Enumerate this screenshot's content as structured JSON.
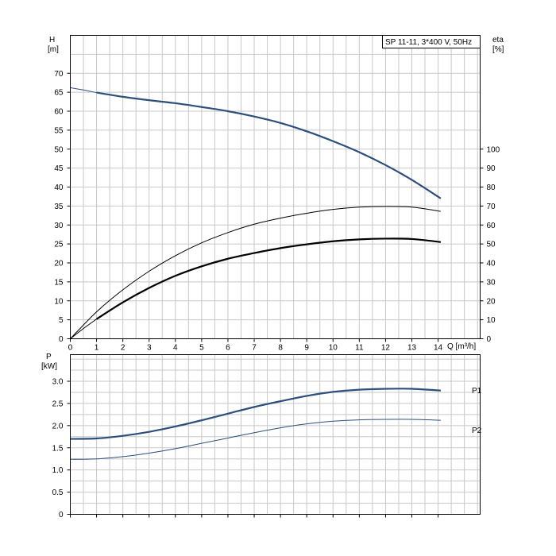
{
  "title": "SP 11-11, 3*400 V, 50Hz",
  "chart_data": [
    {
      "type": "line",
      "name": "H-Q and efficiency curves",
      "xlabel": "Q [m³/h]",
      "ylabel_left": "H\n[m]",
      "ylabel_right": "eta\n[%]",
      "xlim": [
        0,
        15.6
      ],
      "ylim_left": [
        0,
        80
      ],
      "ylim_right": [
        0,
        160
      ],
      "x_ticks": [
        "0",
        "1",
        "2",
        "3",
        "4",
        "5",
        "6",
        "7",
        "8",
        "9",
        "10",
        "11",
        "12",
        "13",
        "14"
      ],
      "y_ticks_left": [
        "0",
        "5",
        "10",
        "15",
        "20",
        "25",
        "30",
        "35",
        "40",
        "45",
        "50",
        "55",
        "60",
        "65",
        "70"
      ],
      "y_ticks_right": [
        "0",
        "10",
        "20",
        "30",
        "40",
        "50",
        "60",
        "70",
        "80",
        "90",
        "100"
      ],
      "grid": true,
      "series": [
        {
          "id": "H-ext",
          "axis": "left",
          "color": "#2c4f7c",
          "weight": "thin",
          "x": [
            0,
            0.5,
            1
          ],
          "y": [
            66.2,
            65.6,
            64.9
          ]
        },
        {
          "id": "H",
          "axis": "left",
          "color": "#2c4f7c",
          "weight": "thick",
          "x": [
            1,
            2,
            3,
            4,
            5,
            6,
            7,
            8,
            9,
            10,
            11,
            12,
            13,
            14.1
          ],
          "y": [
            64.9,
            63.8,
            62.9,
            62.1,
            61.1,
            60.0,
            58.6,
            56.9,
            54.7,
            52.1,
            49.2,
            45.8,
            41.9,
            37.0
          ]
        },
        {
          "id": "eta-ext",
          "axis": "right",
          "color": "#000000",
          "weight": "thin",
          "x": [
            0,
            0.5,
            1
          ],
          "y": [
            0,
            5.4,
            10.4
          ]
        },
        {
          "id": "eta-thick",
          "axis": "right",
          "color": "#000000",
          "weight": "thick",
          "x": [
            1,
            2,
            3,
            4,
            5,
            6,
            7,
            8,
            9,
            10,
            11,
            12,
            13,
            14.1
          ],
          "y": [
            10.4,
            19.2,
            26.8,
            33.2,
            38.2,
            42.2,
            45.2,
            47.8,
            49.8,
            51.4,
            52.4,
            52.8,
            52.6,
            51.0
          ]
        },
        {
          "id": "eta-thin",
          "axis": "right",
          "color": "#000000",
          "weight": "thin",
          "x": [
            0,
            1,
            2,
            3,
            4,
            5,
            6,
            7,
            8,
            9,
            10,
            11,
            12,
            13,
            14.1
          ],
          "y": [
            0,
            14.2,
            25.8,
            35.6,
            43.8,
            50.6,
            56.0,
            60.4,
            63.6,
            66.2,
            68.2,
            69.4,
            69.8,
            69.4,
            67.2
          ]
        }
      ]
    },
    {
      "type": "line",
      "name": "Power curves",
      "ylabel": "P\n[kW]",
      "xlim": [
        0,
        15.6
      ],
      "ylim": [
        0,
        3.6
      ],
      "y_ticks": [
        "0",
        "0.5",
        "1.0",
        "1.5",
        "2.0",
        "2.5",
        "3.0"
      ],
      "grid": true,
      "series": [
        {
          "id": "P1",
          "name": "P1",
          "color": "#2c4f7c",
          "weight": "thick",
          "x": [
            0,
            1,
            2,
            3,
            4,
            5,
            6,
            7,
            8,
            9,
            10,
            11,
            12,
            13,
            14.1
          ],
          "y": [
            1.7,
            1.71,
            1.77,
            1.86,
            1.98,
            2.12,
            2.27,
            2.42,
            2.55,
            2.67,
            2.76,
            2.81,
            2.83,
            2.83,
            2.79
          ]
        },
        {
          "id": "P2",
          "name": "P2",
          "color": "#2c4f7c",
          "weight": "thin",
          "x": [
            0,
            1,
            2,
            3,
            4,
            5,
            6,
            7,
            8,
            9,
            10,
            11,
            12,
            13,
            14.1
          ],
          "y": [
            1.24,
            1.25,
            1.3,
            1.38,
            1.48,
            1.6,
            1.72,
            1.84,
            1.95,
            2.04,
            2.1,
            2.13,
            2.14,
            2.14,
            2.12
          ]
        }
      ]
    }
  ]
}
